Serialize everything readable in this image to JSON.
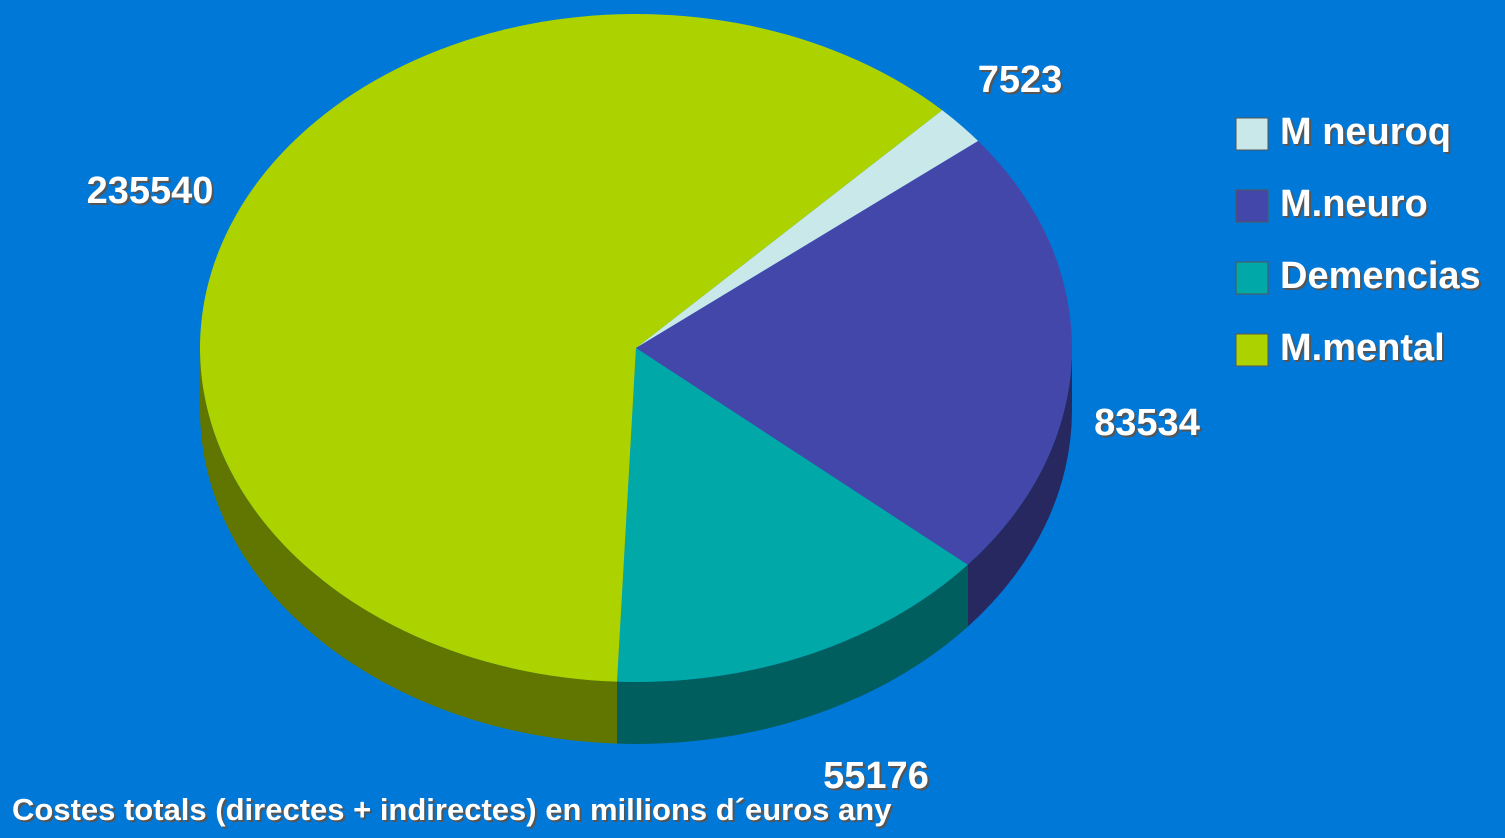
{
  "chart_data": {
    "type": "pie3d",
    "title": "Costes totals (directes + indirectes) en millions d´euros any",
    "categories": [
      "M neuroq",
      "M.neuro",
      "Demencias",
      "M.mental"
    ],
    "values": [
      7523,
      83534,
      55176,
      235540
    ],
    "colors": [
      "#c8e8ea",
      "#4447aa",
      "#00a8a8",
      "#acd300"
    ],
    "legend": "right"
  }
}
